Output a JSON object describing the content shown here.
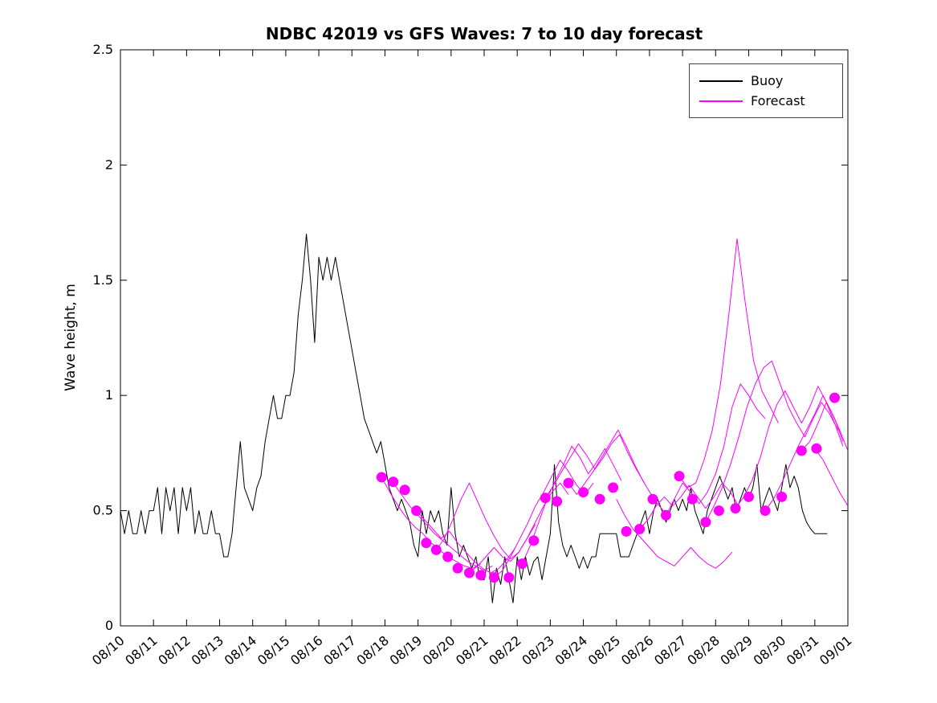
{
  "title": "NDBC 42019 vs GFS Waves: 7 to 10 day forecast",
  "ylabel": "Wave height, m",
  "legend": {
    "items": [
      {
        "label": "Buoy",
        "color": "#000000"
      },
      {
        "label": "Forecast",
        "color": "#FF00FF"
      }
    ]
  },
  "chart_data": {
    "type": "line",
    "title": "NDBC 42019 vs GFS Waves: 7 to 10 day forecast",
    "xlabel": "",
    "ylabel": "Wave height, m",
    "ylim": [
      0,
      2.5
    ],
    "yticks": [
      0,
      0.5,
      1,
      1.5,
      2,
      2.5
    ],
    "ytick_labels": [
      "0",
      "0.5",
      "1",
      "1.5",
      "2",
      "2.5"
    ],
    "xlim_days": [
      0,
      22
    ],
    "x_unit": "days since 08/10",
    "xtick_labels": [
      "08/10",
      "08/11",
      "08/12",
      "08/13",
      "08/14",
      "08/15",
      "08/16",
      "08/17",
      "08/18",
      "08/19",
      "08/20",
      "08/21",
      "08/22",
      "08/23",
      "08/24",
      "08/25",
      "08/26",
      "08/27",
      "08/28",
      "08/29",
      "08/30",
      "08/31",
      "09/01"
    ],
    "grid": false,
    "legend_position": "top-right",
    "buoy_color": "#000000",
    "forecast_color": "#FF00FF",
    "series": [
      {
        "name": "Buoy",
        "color": "#000000",
        "x_start": 0,
        "x_step": 0.125,
        "values": [
          0.5,
          0.4,
          0.5,
          0.4,
          0.4,
          0.5,
          0.4,
          0.5,
          0.5,
          0.6,
          0.4,
          0.6,
          0.5,
          0.6,
          0.4,
          0.6,
          0.5,
          0.6,
          0.4,
          0.5,
          0.4,
          0.4,
          0.5,
          0.4,
          0.4,
          0.3,
          0.3,
          0.4,
          0.6,
          0.8,
          0.6,
          0.55,
          0.5,
          0.6,
          0.65,
          0.8,
          0.9,
          1.0,
          0.9,
          0.9,
          1.0,
          1.0,
          1.1,
          1.35,
          1.5,
          1.7,
          1.5,
          1.23,
          1.6,
          1.5,
          1.6,
          1.5,
          1.6,
          1.5,
          1.4,
          1.3,
          1.2,
          1.1,
          1.0,
          0.9,
          0.85,
          0.8,
          0.75,
          0.8,
          0.7,
          0.6,
          0.55,
          0.5,
          0.55,
          0.5,
          0.45,
          0.35,
          0.3,
          0.5,
          0.4,
          0.5,
          0.45,
          0.5,
          0.4,
          0.35,
          0.6,
          0.4,
          0.3,
          0.35,
          0.3,
          0.25,
          0.3,
          0.2,
          0.2,
          0.3,
          0.1,
          0.25,
          0.18,
          0.3,
          0.2,
          0.1,
          0.3,
          0.2,
          0.3,
          0.22,
          0.28,
          0.3,
          0.2,
          0.3,
          0.4,
          0.7,
          0.45,
          0.35,
          0.3,
          0.35,
          0.3,
          0.25,
          0.3,
          0.25,
          0.3,
          0.3,
          0.4,
          0.4,
          0.4,
          0.4,
          0.4,
          0.3,
          0.3,
          0.3,
          0.35,
          0.4,
          0.45,
          0.5,
          0.4,
          0.5,
          0.55,
          0.5,
          0.45,
          0.5,
          0.55,
          0.5,
          0.55,
          0.5,
          0.6,
          0.5,
          0.45,
          0.4,
          0.5,
          0.55,
          0.6,
          0.65,
          0.6,
          0.55,
          0.6,
          0.5,
          0.55,
          0.6,
          0.55,
          0.6,
          0.7,
          0.5,
          0.55,
          0.6,
          0.55,
          0.5,
          0.6,
          0.7,
          0.6,
          0.65,
          0.6,
          0.5,
          0.45,
          0.42,
          0.4,
          0.4,
          0.4,
          0.4
        ]
      }
    ],
    "forecast_runs": [
      {
        "x_start": 7.9,
        "x_step": 0.25,
        "values": [
          0.645,
          0.58,
          0.52,
          0.47,
          0.43,
          0.4,
          0.36,
          0.33,
          0.3,
          0.28,
          0.26,
          0.25,
          0.27
        ]
      },
      {
        "x_start": 8.25,
        "x_step": 0.25,
        "values": [
          0.62,
          0.57,
          0.52,
          0.48,
          0.44,
          0.4,
          0.37,
          0.34,
          0.31,
          0.28,
          0.26,
          0.24,
          0.26
        ]
      },
      {
        "x_start": 8.95,
        "x_step": 0.25,
        "values": [
          0.5,
          0.46,
          0.42,
          0.38,
          0.41,
          0.36,
          0.32,
          0.28,
          0.25,
          0.23,
          0.25,
          0.29,
          0.34
        ]
      },
      {
        "x_start": 9.55,
        "x_step": 0.25,
        "values": [
          0.33,
          0.38,
          0.46,
          0.55,
          0.62,
          0.54,
          0.46,
          0.39,
          0.33,
          0.29,
          0.32,
          0.38,
          0.44
        ]
      },
      {
        "x_start": 10.55,
        "x_step": 0.25,
        "values": [
          0.23,
          0.26,
          0.3,
          0.34,
          0.3,
          0.28,
          0.32,
          0.38,
          0.45,
          0.52,
          0.58,
          0.62,
          0.57
        ]
      },
      {
        "x_start": 11.3,
        "x_step": 0.25,
        "values": [
          0.21,
          0.24,
          0.3,
          0.37,
          0.44,
          0.52,
          0.58,
          0.65,
          0.72,
          0.67,
          0.61,
          0.57,
          0.62
        ]
      },
      {
        "x_start": 12.15,
        "x_step": 0.25,
        "values": [
          0.27,
          0.35,
          0.45,
          0.55,
          0.63,
          0.7,
          0.78,
          0.73,
          0.66,
          0.71,
          0.77,
          0.7,
          0.63
        ]
      },
      {
        "x_start": 12.85,
        "x_step": 0.25,
        "values": [
          0.555,
          0.61,
          0.67,
          0.73,
          0.79,
          0.74,
          0.68,
          0.73,
          0.79,
          0.83,
          0.75,
          0.68,
          0.62
        ]
      },
      {
        "x_start": 13.55,
        "x_step": 0.25,
        "values": [
          0.62,
          0.57,
          0.62,
          0.67,
          0.73,
          0.79,
          0.85,
          0.78,
          0.7,
          0.63,
          0.57,
          0.52,
          0.48
        ]
      },
      {
        "x_start": 15.0,
        "x_step": 0.25,
        "values": [
          0.55,
          0.48,
          0.42,
          0.38,
          0.34,
          0.3,
          0.28,
          0.26,
          0.3,
          0.34,
          0.3,
          0.27,
          0.25,
          0.28,
          0.32
        ]
      },
      {
        "x_start": 15.7,
        "x_step": 0.25,
        "values": [
          0.42,
          0.46,
          0.52,
          0.56,
          0.52,
          0.56,
          0.61,
          0.56,
          0.51,
          0.56,
          0.62,
          0.58,
          0.52
        ]
      },
      {
        "x_start": 16.5,
        "x_step": 0.25,
        "values": [
          0.48,
          0.55,
          0.62,
          0.58,
          0.53,
          0.58,
          0.66,
          0.78,
          0.95,
          1.05,
          1.0,
          0.94,
          0.9
        ]
      },
      {
        "x_start": 16.9,
        "x_step": 0.25,
        "values": [
          0.65,
          0.6,
          0.62,
          0.72,
          0.85,
          1.05,
          1.35,
          1.68,
          1.4,
          1.15,
          1.02,
          0.95,
          0.88
        ]
      },
      {
        "x_start": 17.7,
        "x_step": 0.25,
        "values": [
          0.45,
          0.52,
          0.6,
          0.7,
          0.82,
          0.95,
          1.05,
          1.12,
          1.15,
          1.05,
          0.95,
          0.88,
          0.82,
          0.9,
          0.97,
          0.92,
          0.85
        ]
      },
      {
        "x_start": 18.6,
        "x_step": 0.25,
        "values": [
          0.51,
          0.56,
          0.63,
          0.73,
          0.86,
          0.96,
          1.02,
          0.95,
          0.88,
          0.95,
          1.04,
          0.97,
          0.88,
          0.78
        ]
      },
      {
        "x_start": 19.5,
        "x_step": 0.25,
        "values": [
          0.5,
          0.55,
          0.62,
          0.7,
          0.78,
          0.85,
          0.92,
          1.0,
          0.93,
          0.85,
          0.76
        ]
      },
      {
        "x_start": 20.6,
        "x_step": 0.25,
        "values": [
          0.76,
          0.8,
          0.88,
          0.97,
          0.9,
          0.8
        ]
      },
      {
        "x_start": 21.0,
        "x_step": 0.25,
        "values": [
          0.77,
          0.72,
          0.65,
          0.58,
          0.52
        ]
      }
    ],
    "forecast_markers": {
      "x": [
        7.9,
        8.25,
        8.6,
        8.95,
        9.25,
        9.55,
        9.9,
        10.2,
        10.55,
        10.9,
        11.3,
        11.75,
        12.15,
        12.5,
        12.85,
        13.2,
        13.55,
        14.0,
        14.5,
        14.9,
        15.3,
        15.7,
        16.1,
        16.5,
        16.9,
        17.3,
        17.7,
        18.1,
        18.6,
        19.0,
        19.5,
        20.0,
        20.6,
        21.05,
        21.6
      ],
      "y": [
        0.645,
        0.625,
        0.59,
        0.5,
        0.36,
        0.33,
        0.3,
        0.25,
        0.23,
        0.22,
        0.21,
        0.21,
        0.27,
        0.37,
        0.555,
        0.54,
        0.62,
        0.58,
        0.55,
        0.6,
        0.41,
        0.42,
        0.55,
        0.48,
        0.65,
        0.55,
        0.45,
        0.5,
        0.51,
        0.56,
        0.5,
        0.56,
        0.76,
        0.77,
        0.99
      ]
    }
  }
}
